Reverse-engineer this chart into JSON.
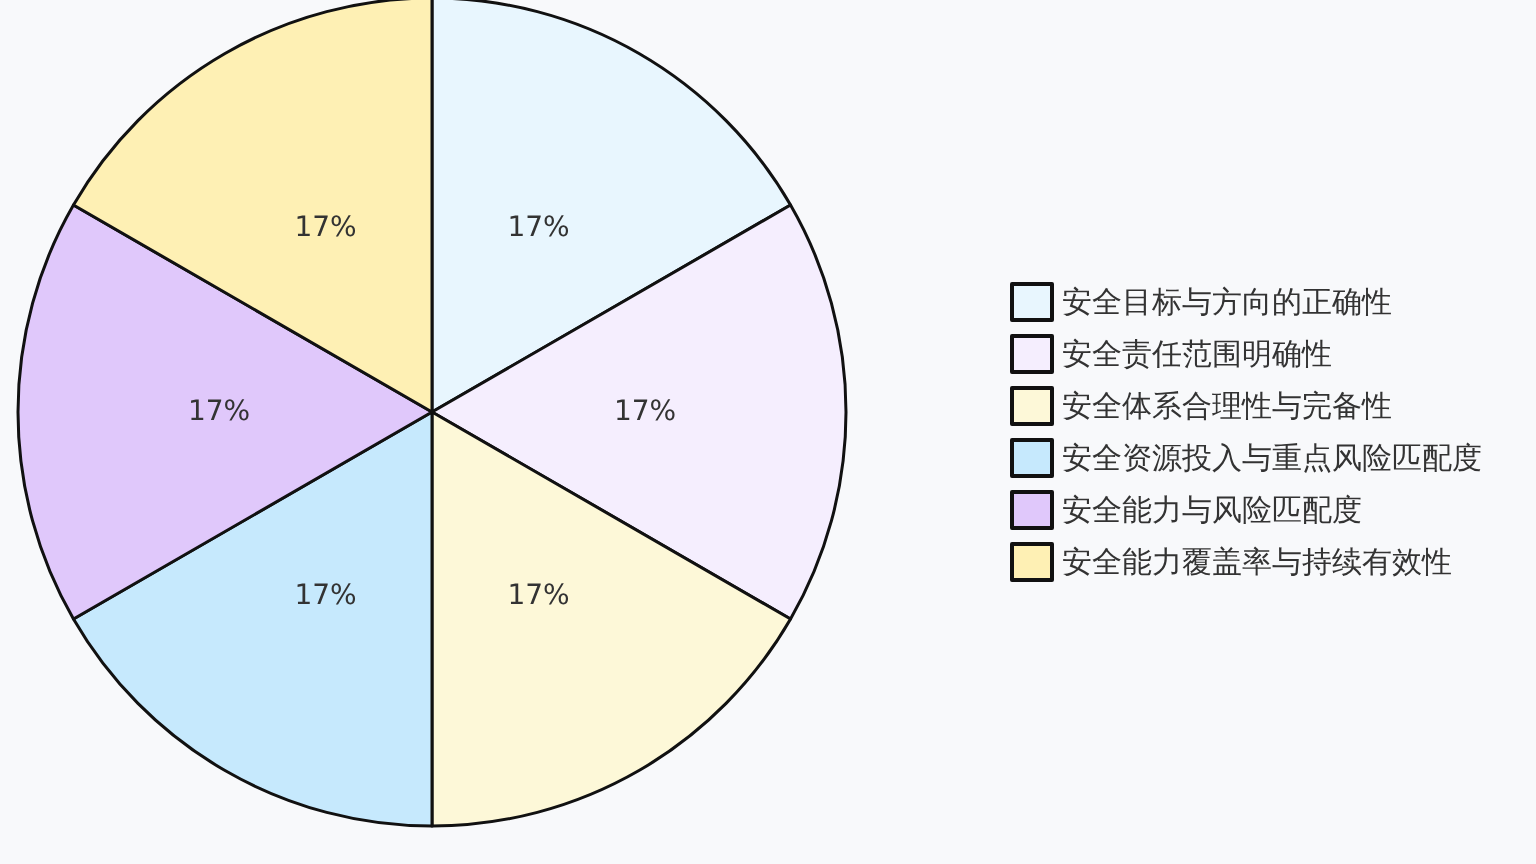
{
  "chart_data": {
    "type": "pie",
    "categories": [
      "安全目标与方向的正确性",
      "安全责任范围明确性",
      "安全体系合理性与完备性",
      "安全资源投入与重点风险匹配度",
      "安全能力与风险匹配度",
      "安全能力覆盖率与持续有效性"
    ],
    "values": [
      16.67,
      16.67,
      16.67,
      16.67,
      16.67,
      16.67
    ],
    "value_labels": [
      "17%",
      "17%",
      "17%",
      "17%",
      "17%",
      "17%"
    ],
    "colors": [
      "#e8f6fe",
      "#f5eefe",
      "#fdf8d8",
      "#c6e9fd",
      "#e0c8fb",
      "#fef0b4"
    ],
    "legend": "right"
  }
}
